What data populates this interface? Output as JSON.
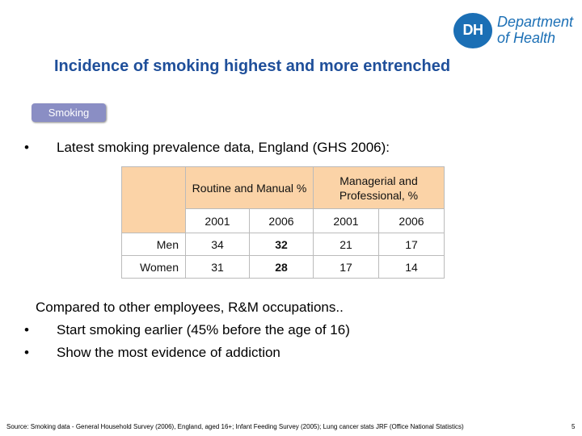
{
  "logo": {
    "badge": "DH",
    "line1": "Department",
    "line2": "of Health"
  },
  "title": "Incidence of smoking highest and more entrenched",
  "tag": "Smoking",
  "bullet_glyph": "•",
  "bullet1": "Latest smoking prevalence data, England (GHS 2006):",
  "table": {
    "group1": "Routine and Manual %",
    "group2": "Managerial and Professional, %",
    "years": [
      "2001",
      "2006",
      "2001",
      "2006"
    ],
    "rows": [
      {
        "label": "Men",
        "values": [
          "34",
          "32",
          "21",
          "17"
        ]
      },
      {
        "label": "Women",
        "values": [
          "31",
          "28",
          "17",
          "14"
        ]
      }
    ]
  },
  "paragraph": "Compared to other employees, R&M occupations..",
  "bullet2": "Start smoking earlier (45% before the age of 16)",
  "bullet3": "Show the most evidence of addiction",
  "source": "Source: Smoking data - General Household Survey (2006), England, aged 16+; Infant Feeding Survey (2005); Lung cancer stats JRF (Office National Statistics)",
  "page_number": "5"
}
